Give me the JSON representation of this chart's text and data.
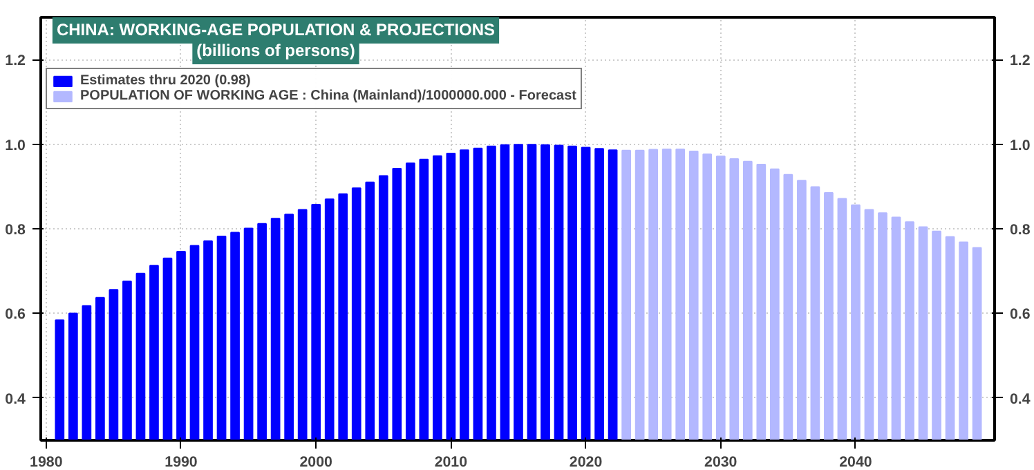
{
  "chart_data": {
    "type": "bar",
    "title": "CHINA: WORKING-AGE POPULATION & PROJECTIONS",
    "subtitle": "(billions of persons)",
    "xlim": [
      1979.6,
      2050.3
    ],
    "xticks": [
      1980,
      1990,
      2000,
      2010,
      2020,
      2030,
      2040
    ],
    "ylim": [
      0.3,
      1.3
    ],
    "yticks": [
      0.4,
      0.6,
      0.8,
      {
        "value": 1.0,
        "label": "1.0"
      },
      1.2
    ],
    "y2lim": [
      0.3,
      1.3
    ],
    "y2ticks": [
      0.4,
      0.6,
      0.8,
      {
        "value": 1.0,
        "label": "1.0"
      },
      1.2
    ],
    "grid": true,
    "legend": "top left",
    "series": [
      {
        "name": "Estimates thru 2020 (0.98)",
        "color": "#0000ff",
        "x": [
          1981,
          1982,
          1983,
          1984,
          1985,
          1986,
          1987,
          1988,
          1989,
          1990,
          1991,
          1992,
          1993,
          1994,
          1995,
          1996,
          1997,
          1998,
          1999,
          2000,
          2001,
          2002,
          2003,
          2004,
          2005,
          2006,
          2007,
          2008,
          2009,
          2010,
          2011,
          2012,
          2013,
          2014,
          2015,
          2016,
          2017,
          2018,
          2019,
          2020,
          2021,
          2022
        ],
        "values": [
          0.584,
          0.6,
          0.618,
          0.637,
          0.656,
          0.676,
          0.694,
          0.713,
          0.73,
          0.746,
          0.76,
          0.771,
          0.782,
          0.791,
          0.801,
          0.812,
          0.824,
          0.834,
          0.845,
          0.857,
          0.87,
          0.882,
          0.896,
          0.91,
          0.925,
          0.942,
          0.955,
          0.964,
          0.972,
          0.978,
          0.986,
          0.99,
          0.995,
          0.998,
          0.999,
          0.999,
          0.998,
          0.997,
          0.995,
          0.992,
          0.989,
          0.986
        ]
      },
      {
        "name": "POPULATION OF WORKING AGE : China (Mainland)/1000000.000 - Forecast",
        "color": "#b3b8ff",
        "x": [
          2023,
          2024,
          2025,
          2026,
          2027,
          2028,
          2029,
          2030,
          2031,
          2032,
          2033,
          2034,
          2035,
          2036,
          2037,
          2038,
          2039,
          2040,
          2041,
          2042,
          2043,
          2044,
          2045,
          2046,
          2047,
          2048,
          2049
        ],
        "values": [
          0.985,
          0.985,
          0.987,
          0.988,
          0.988,
          0.983,
          0.976,
          0.971,
          0.965,
          0.959,
          0.952,
          0.941,
          0.928,
          0.914,
          0.899,
          0.885,
          0.871,
          0.856,
          0.845,
          0.837,
          0.827,
          0.816,
          0.804,
          0.794,
          0.781,
          0.768,
          0.755
        ]
      }
    ]
  }
}
